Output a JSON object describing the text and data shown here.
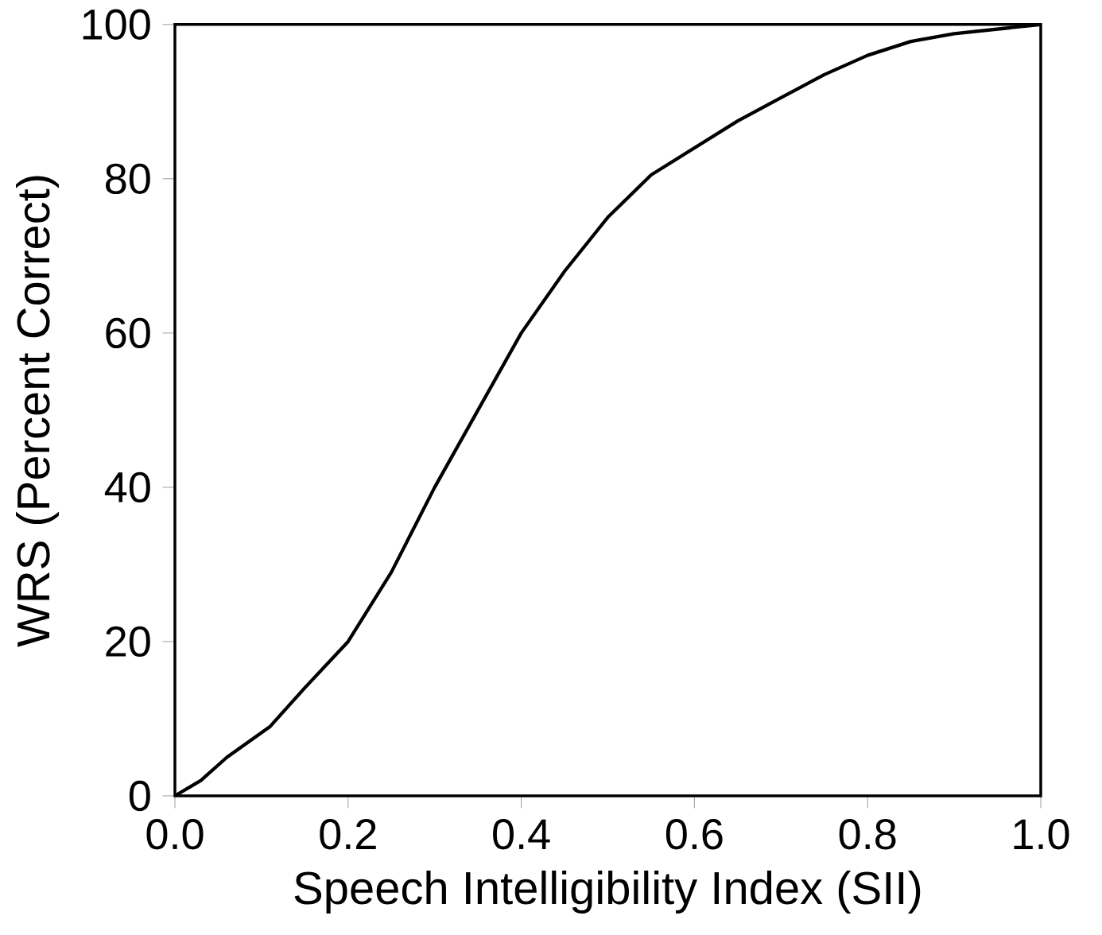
{
  "chart_data": {
    "type": "line",
    "xlabel": "Speech Intelligibility Index (SII)",
    "ylabel": "WRS (Percent Correct)",
    "x": [
      0,
      0.03,
      0.06,
      0.11,
      0.15,
      0.2,
      0.25,
      0.3,
      0.35,
      0.4,
      0.45,
      0.5,
      0.55,
      0.6,
      0.65,
      0.7,
      0.75,
      0.8,
      0.85,
      0.9,
      0.95,
      1.0
    ],
    "series": [
      {
        "color": "#000000",
        "values": [
          0,
          2,
          5,
          9,
          14,
          20,
          29,
          40,
          50,
          60,
          68,
          75,
          80.5,
          84,
          87.5,
          90.5,
          93.5,
          96,
          97.8,
          98.8,
          99.4,
          100
        ]
      }
    ],
    "xlim": [
      0,
      1
    ],
    "ylim": [
      0,
      100
    ],
    "xticks": [
      {
        "value": 0,
        "label": "0.0"
      },
      0.2,
      0.4,
      0.6,
      0.8,
      {
        "value": 1,
        "label": "1.0"
      }
    ],
    "yticks": [
      0,
      20,
      40,
      60,
      80,
      100
    ],
    "marker": "none",
    "line_style": "solid"
  }
}
